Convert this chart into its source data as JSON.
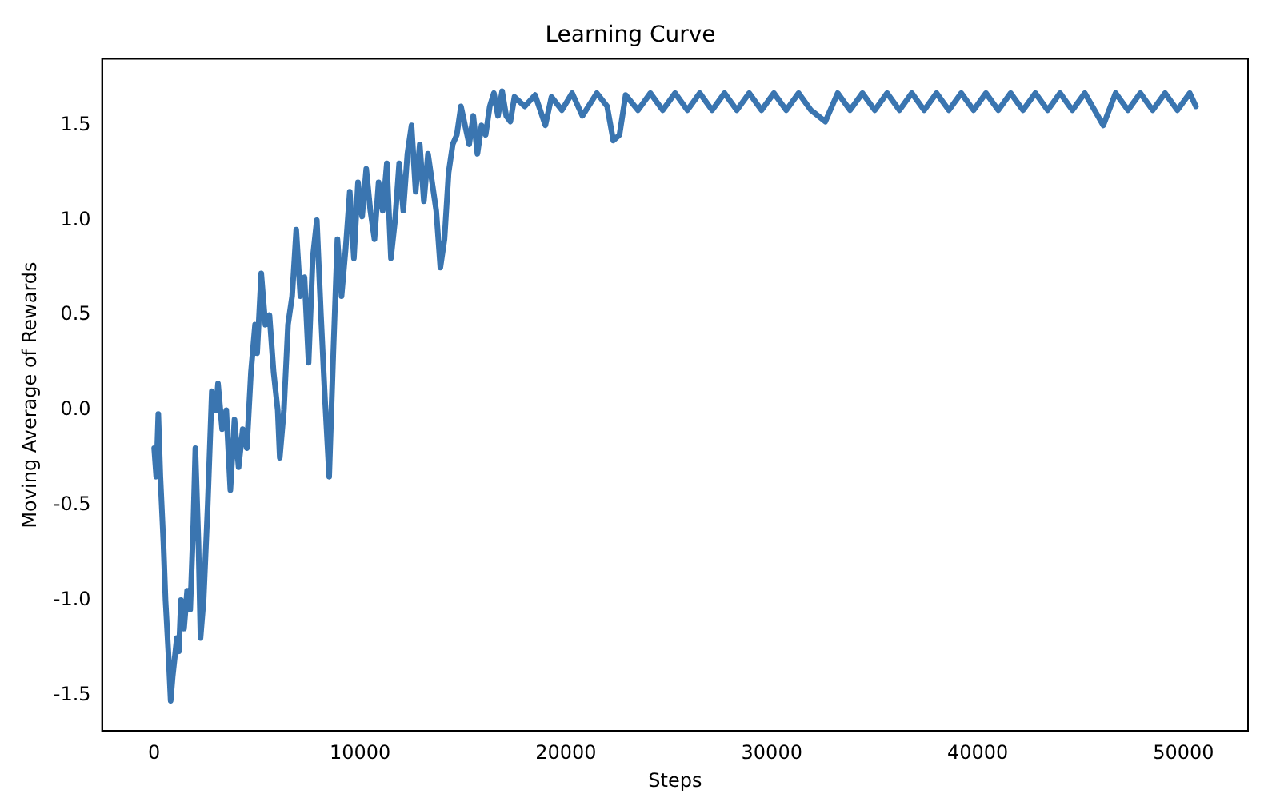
{
  "chart_data": {
    "type": "line",
    "title": "Learning Curve",
    "xlabel": "Steps",
    "ylabel": "Moving Average of Rewards",
    "xlim": [
      -2530,
      53130
    ],
    "ylim": [
      -1.69,
      1.85
    ],
    "xticks": [
      0,
      10000,
      20000,
      30000,
      40000,
      50000
    ],
    "yticks": [
      -1.5,
      {
        "value": -1,
        "label": "-1.0"
      },
      -0.5,
      {
        "value": 0,
        "label": "0.0"
      },
      0.5,
      {
        "value": 1,
        "label": "1.0"
      },
      1.5
    ],
    "grid": false,
    "legend": false,
    "marker": "none",
    "line_style": "solid",
    "series": [
      {
        "color": "#3a75b0",
        "x": [
          0,
          100,
          200,
          300,
          450,
          550,
          700,
          800,
          900,
          1100,
          1200,
          1300,
          1450,
          1600,
          1750,
          1900,
          2000,
          2150,
          2250,
          2400,
          2600,
          2700,
          2800,
          3000,
          3100,
          3300,
          3500,
          3700,
          3900,
          4100,
          4300,
          4500,
          4700,
          4900,
          5000,
          5200,
          5400,
          5600,
          5800,
          6000,
          6100,
          6300,
          6500,
          6700,
          6900,
          7100,
          7300,
          7500,
          7700,
          7900,
          8100,
          8300,
          8500,
          8700,
          8900,
          9100,
          9300,
          9500,
          9700,
          9900,
          10100,
          10300,
          10500,
          10700,
          10900,
          11100,
          11300,
          11500,
          11700,
          11900,
          12100,
          12300,
          12500,
          12700,
          12900,
          13100,
          13300,
          13500,
          13700,
          13900,
          14100,
          14300,
          14500,
          14700,
          14900,
          15100,
          15300,
          15500,
          15700,
          15900,
          16100,
          16300,
          16500,
          16700,
          16900,
          17100,
          17300,
          17500,
          18000,
          18500,
          19000,
          19300,
          19800,
          20300,
          20800,
          21500,
          22000,
          22300,
          22600,
          22900,
          23500,
          24100,
          24700,
          25300,
          25900,
          26500,
          27100,
          27700,
          28300,
          28900,
          29500,
          30100,
          30700,
          31300,
          31900,
          32600,
          33200,
          33800,
          34400,
          35000,
          35600,
          36200,
          36800,
          37400,
          38000,
          38600,
          39200,
          39800,
          40400,
          41000,
          41600,
          42200,
          42800,
          43400,
          44000,
          44600,
          45200,
          46100,
          46700,
          47300,
          47900,
          48500,
          49100,
          49700,
          50300,
          50600
        ],
        "values": [
          -0.2,
          -0.35,
          -0.02,
          -0.35,
          -0.7,
          -1.0,
          -1.3,
          -1.53,
          -1.4,
          -1.2,
          -1.27,
          -1.0,
          -1.15,
          -0.95,
          -1.05,
          -0.6,
          -0.2,
          -0.7,
          -1.2,
          -1.0,
          -0.5,
          -0.2,
          0.1,
          0.0,
          0.14,
          -0.1,
          0.0,
          -0.42,
          -0.05,
          -0.3,
          -0.1,
          -0.2,
          0.2,
          0.45,
          0.3,
          0.72,
          0.45,
          0.5,
          0.2,
          0.0,
          -0.25,
          0.0,
          0.45,
          0.6,
          0.95,
          0.6,
          0.7,
          0.25,
          0.8,
          1.0,
          0.5,
          0.05,
          -0.35,
          0.3,
          0.9,
          0.6,
          0.85,
          1.15,
          0.8,
          1.2,
          1.02,
          1.27,
          1.05,
          0.9,
          1.2,
          1.05,
          1.3,
          0.8,
          1.0,
          1.3,
          1.05,
          1.35,
          1.5,
          1.15,
          1.4,
          1.1,
          1.35,
          1.2,
          1.05,
          0.75,
          0.9,
          1.25,
          1.4,
          1.45,
          1.6,
          1.5,
          1.4,
          1.55,
          1.35,
          1.5,
          1.45,
          1.6,
          1.67,
          1.55,
          1.68,
          1.55,
          1.52,
          1.65,
          1.6,
          1.66,
          1.5,
          1.65,
          1.58,
          1.67,
          1.55,
          1.67,
          1.6,
          1.42,
          1.45,
          1.66,
          1.58,
          1.67,
          1.58,
          1.67,
          1.58,
          1.67,
          1.58,
          1.67,
          1.58,
          1.67,
          1.58,
          1.67,
          1.58,
          1.67,
          1.58,
          1.52,
          1.67,
          1.58,
          1.67,
          1.58,
          1.67,
          1.58,
          1.67,
          1.58,
          1.67,
          1.58,
          1.67,
          1.58,
          1.67,
          1.58,
          1.67,
          1.58,
          1.67,
          1.58,
          1.67,
          1.58,
          1.67,
          1.5,
          1.67,
          1.58,
          1.67,
          1.58,
          1.67,
          1.58,
          1.67,
          1.6
        ]
      }
    ]
  }
}
